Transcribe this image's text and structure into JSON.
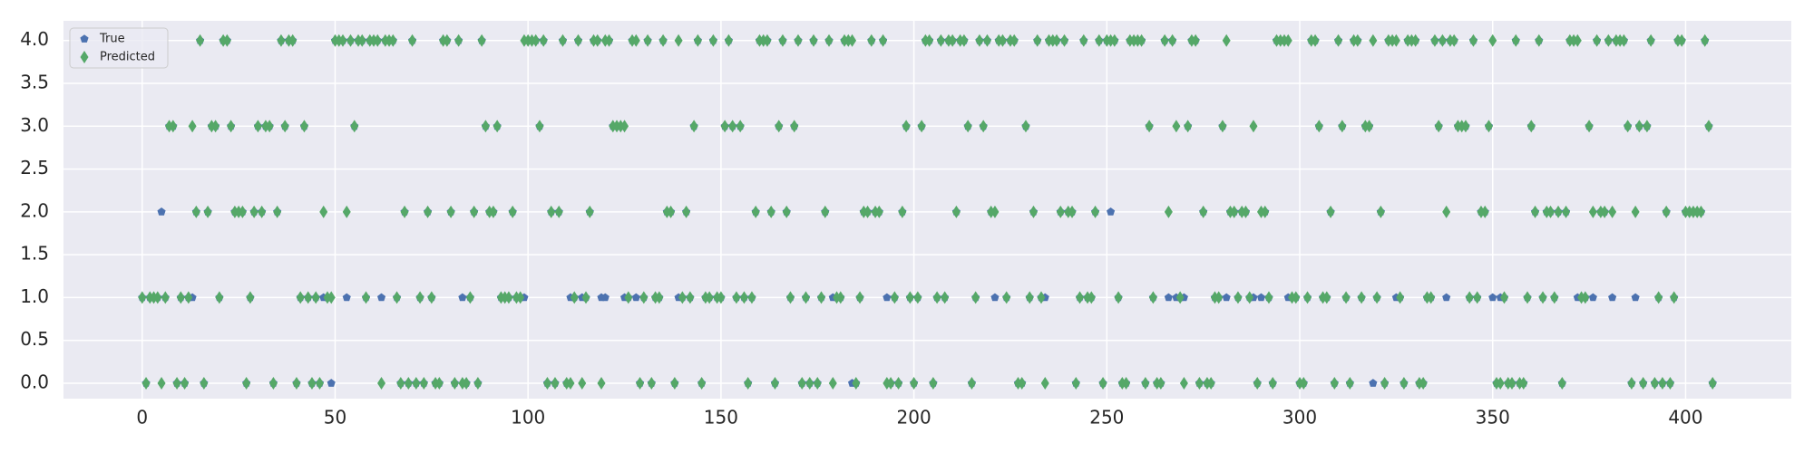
{
  "chart_data": {
    "type": "scatter",
    "x": [
      0,
      1,
      2,
      3,
      4,
      5,
      6,
      7,
      8,
      9,
      10,
      11,
      12,
      13,
      14,
      15,
      16,
      17,
      18,
      19,
      20,
      21,
      22,
      23,
      24,
      25,
      26,
      27,
      28,
      29,
      30,
      31,
      32,
      33,
      34,
      35,
      36,
      37,
      38,
      39,
      40,
      41,
      42,
      43,
      44,
      45,
      46,
      47,
      48,
      49,
      50,
      51,
      52,
      53,
      54,
      55,
      56,
      57,
      58,
      59,
      60,
      61,
      62,
      63,
      64,
      65,
      66,
      67,
      68,
      69,
      70,
      71,
      72,
      73,
      74,
      75,
      76,
      77,
      78,
      79,
      80,
      81,
      82,
      83,
      84,
      85,
      86,
      87,
      88,
      89,
      90,
      91,
      92,
      93,
      94,
      95,
      96,
      97,
      98,
      99,
      100,
      101,
      102,
      103,
      104,
      105,
      106,
      107,
      108,
      109,
      110,
      111,
      112,
      113,
      114,
      115,
      116,
      117,
      118,
      119,
      120,
      121,
      122,
      123,
      124,
      125,
      126,
      127,
      128,
      129,
      130,
      131,
      132,
      133,
      134,
      135,
      136,
      137,
      138,
      139,
      140,
      141,
      142,
      143,
      144,
      145,
      146,
      147,
      148,
      149,
      150,
      151,
      152,
      153,
      154,
      155,
      156,
      157,
      158,
      159,
      160,
      161,
      162,
      163,
      164,
      165,
      166,
      167,
      168,
      169,
      170,
      171,
      172,
      173,
      174,
      175,
      176,
      177,
      178,
      179,
      180,
      181,
      182,
      183,
      184,
      185,
      186,
      187,
      188,
      189,
      190,
      191,
      192,
      193,
      194,
      195,
      196,
      197,
      198,
      199,
      200,
      201,
      202,
      203,
      204,
      205,
      206,
      207,
      208,
      209,
      210,
      211,
      212,
      213,
      214,
      215,
      216,
      217,
      218,
      219,
      220,
      221,
      222,
      223,
      224,
      225,
      226,
      227,
      228,
      229,
      230,
      231,
      232,
      233,
      234,
      235,
      236,
      237,
      238,
      239,
      240,
      241,
      242,
      243,
      244,
      245,
      246,
      247,
      248,
      249,
      250,
      251,
      252,
      253,
      254,
      255,
      256,
      257,
      258,
      259,
      260,
      261,
      262,
      263,
      264,
      265,
      266,
      267,
      268,
      269,
      270,
      271,
      272,
      273,
      274,
      275,
      276,
      277,
      278,
      279,
      280,
      281,
      282,
      283,
      284,
      285,
      286,
      287,
      288,
      289,
      290,
      291,
      292,
      293,
      294,
      295,
      296,
      297,
      298,
      299,
      300,
      301,
      302,
      303,
      304,
      305,
      306,
      307,
      308,
      309,
      310,
      311,
      312,
      313,
      314,
      315,
      316,
      317,
      318,
      319,
      320,
      321,
      322,
      323,
      324,
      325,
      326,
      327,
      328,
      329,
      330,
      331,
      332,
      333,
      334,
      335,
      336,
      337,
      338,
      339,
      340,
      341,
      342,
      343,
      344,
      345,
      346,
      347,
      348,
      349,
      350,
      351,
      352,
      353,
      354,
      355,
      356,
      357,
      358,
      359,
      360,
      361,
      362,
      363,
      364,
      365,
      366,
      367,
      368,
      369,
      370,
      371,
      372,
      373,
      374,
      375,
      376,
      377,
      378,
      379,
      380,
      381,
      382,
      383,
      384,
      385,
      386,
      387,
      388,
      389,
      390,
      391,
      392,
      393,
      394,
      395,
      396,
      397,
      398,
      399,
      400,
      401,
      402,
      403,
      404,
      405,
      406,
      407
    ],
    "series": [
      {
        "name": "True",
        "color": "#4c72b0",
        "marker": "pentagon",
        "values": [
          1,
          0,
          1,
          1,
          1,
          2,
          1,
          3,
          3,
          0,
          1,
          0,
          1,
          1,
          2,
          4,
          0,
          2,
          3,
          3,
          1,
          4,
          4,
          3,
          2,
          2,
          2,
          0,
          1,
          2,
          3,
          2,
          3,
          3,
          0,
          2,
          4,
          3,
          4,
          4,
          0,
          1,
          3,
          1,
          0,
          1,
          0,
          1,
          1,
          0,
          4,
          4,
          4,
          1,
          4,
          3,
          4,
          4,
          1,
          4,
          4,
          4,
          1,
          4,
          4,
          4,
          1,
          0,
          2,
          0,
          4,
          0,
          1,
          0,
          2,
          1,
          0,
          0,
          4,
          4,
          2,
          0,
          4,
          1,
          0,
          1,
          2,
          0,
          4,
          3,
          2,
          2,
          3,
          1,
          1,
          1,
          2,
          1,
          1,
          1,
          4,
          4,
          4,
          3,
          4,
          0,
          2,
          0,
          2,
          4,
          0,
          1,
          1,
          4,
          1,
          1,
          2,
          4,
          4,
          1,
          1,
          4,
          3,
          3,
          3,
          1,
          1,
          4,
          1,
          0,
          1,
          4,
          0,
          1,
          1,
          4,
          2,
          2,
          0,
          1,
          1,
          2,
          1,
          3,
          4,
          0,
          1,
          1,
          4,
          1,
          1,
          3,
          4,
          3,
          1,
          3,
          1,
          0,
          1,
          2,
          4,
          4,
          4,
          2,
          0,
          3,
          4,
          2,
          1,
          3,
          4,
          0,
          1,
          0,
          4,
          0,
          1,
          2,
          4,
          1,
          1,
          1,
          4,
          4,
          0,
          0,
          1,
          2,
          2,
          4,
          2,
          2,
          4,
          1,
          0,
          1,
          0,
          2,
          3,
          1,
          0,
          1,
          3,
          4,
          4,
          0,
          1,
          4,
          1,
          4,
          4,
          2,
          4,
          4,
          3,
          0,
          1,
          4,
          3,
          4,
          2,
          1,
          4,
          4,
          1,
          4,
          4,
          0,
          0,
          3,
          1,
          2,
          4,
          1,
          1,
          4,
          4,
          4,
          2,
          4,
          2,
          2,
          0,
          1,
          4,
          1,
          1,
          2,
          4,
          0,
          4,
          2,
          4,
          1,
          0,
          0,
          4,
          4,
          4,
          4,
          0,
          3,
          1,
          0,
          0,
          4,
          1,
          4,
          1,
          1,
          1,
          3,
          4,
          4,
          0,
          2,
          0,
          0,
          1,
          1,
          3,
          1,
          2,
          2,
          1,
          2,
          2,
          1,
          1,
          0,
          1,
          2,
          1,
          0,
          4,
          4,
          4,
          1,
          1,
          1,
          0,
          0,
          1,
          4,
          4,
          3,
          1,
          1,
          2,
          0,
          4,
          3,
          1,
          0,
          4,
          4,
          1,
          3,
          3,
          0,
          1,
          2,
          0,
          4,
          4,
          1,
          1,
          0,
          4,
          4,
          4,
          0,
          0,
          1,
          1,
          4,
          3,
          4,
          1,
          4,
          4,
          3,
          3,
          3,
          1,
          4,
          1,
          2,
          2,
          3,
          1,
          0,
          1,
          1,
          0,
          0,
          4,
          0,
          0,
          1,
          3,
          2,
          4,
          1,
          2,
          2,
          1,
          2,
          0,
          2,
          4,
          4,
          1,
          1,
          1,
          3,
          1,
          4,
          2,
          2,
          4,
          1,
          4,
          4,
          4,
          3,
          0,
          1,
          3,
          0,
          3,
          4,
          0,
          1,
          0,
          2,
          0,
          1,
          4,
          4,
          2,
          2,
          2,
          2,
          2,
          4,
          3,
          0
        ]
      },
      {
        "name": "Predicted",
        "color": "#55a868",
        "marker": "diamond",
        "values": [
          1,
          0,
          1,
          1,
          1,
          0,
          1,
          3,
          3,
          0,
          1,
          0,
          1,
          3,
          2,
          4,
          0,
          2,
          3,
          3,
          1,
          4,
          4,
          3,
          2,
          2,
          2,
          0,
          1,
          2,
          3,
          2,
          3,
          3,
          0,
          2,
          4,
          3,
          4,
          4,
          0,
          1,
          3,
          1,
          0,
          1,
          0,
          2,
          1,
          1,
          4,
          4,
          4,
          2,
          4,
          3,
          4,
          4,
          1,
          4,
          4,
          4,
          0,
          4,
          4,
          4,
          1,
          0,
          2,
          0,
          4,
          0,
          1,
          0,
          2,
          1,
          0,
          0,
          4,
          4,
          2,
          0,
          4,
          0,
          0,
          1,
          2,
          0,
          4,
          3,
          2,
          2,
          3,
          1,
          1,
          1,
          2,
          1,
          1,
          4,
          4,
          4,
          4,
          3,
          4,
          0,
          2,
          0,
          2,
          4,
          0,
          0,
          1,
          4,
          0,
          1,
          2,
          4,
          4,
          0,
          4,
          4,
          3,
          3,
          3,
          3,
          1,
          4,
          4,
          0,
          1,
          4,
          0,
          1,
          1,
          4,
          2,
          2,
          0,
          4,
          1,
          2,
          1,
          3,
          4,
          0,
          1,
          1,
          4,
          1,
          1,
          3,
          4,
          3,
          1,
          3,
          1,
          0,
          1,
          2,
          4,
          4,
          4,
          2,
          0,
          3,
          4,
          2,
          1,
          3,
          4,
          0,
          1,
          0,
          4,
          0,
          1,
          2,
          4,
          0,
          1,
          1,
          4,
          4,
          4,
          0,
          1,
          2,
          2,
          4,
          2,
          2,
          4,
          0,
          0,
          1,
          0,
          2,
          3,
          1,
          0,
          1,
          3,
          4,
          4,
          0,
          1,
          4,
          1,
          4,
          4,
          2,
          4,
          4,
          3,
          0,
          1,
          4,
          3,
          4,
          2,
          2,
          4,
          4,
          1,
          4,
          4,
          0,
          0,
          3,
          1,
          2,
          4,
          1,
          0,
          4,
          4,
          4,
          2,
          4,
          2,
          2,
          0,
          1,
          4,
          1,
          1,
          2,
          4,
          0,
          4,
          4,
          4,
          1,
          0,
          0,
          4,
          4,
          4,
          4,
          0,
          3,
          1,
          0,
          0,
          4,
          2,
          4,
          3,
          1,
          0,
          3,
          4,
          4,
          0,
          2,
          0,
          0,
          1,
          1,
          3,
          4,
          2,
          2,
          1,
          2,
          2,
          1,
          3,
          0,
          2,
          2,
          1,
          0,
          4,
          4,
          4,
          4,
          1,
          1,
          0,
          0,
          1,
          4,
          4,
          3,
          1,
          1,
          2,
          0,
          4,
          3,
          1,
          0,
          4,
          4,
          1,
          3,
          3,
          4,
          1,
          2,
          0,
          4,
          4,
          4,
          1,
          0,
          4,
          4,
          4,
          0,
          0,
          1,
          1,
          4,
          3,
          4,
          2,
          4,
          4,
          3,
          3,
          3,
          1,
          4,
          1,
          2,
          2,
          3,
          4,
          0,
          0,
          1,
          0,
          0,
          4,
          0,
          0,
          1,
          3,
          2,
          4,
          1,
          2,
          2,
          1,
          2,
          0,
          2,
          4,
          4,
          4,
          1,
          1,
          3,
          2,
          4,
          2,
          2,
          4,
          2,
          4,
          4,
          4,
          3,
          0,
          2,
          3,
          0,
          3,
          4,
          0,
          1,
          0,
          2,
          0,
          1,
          4,
          4,
          2,
          2,
          2,
          2,
          2,
          4,
          3,
          0
        ]
      }
    ],
    "xlim": [
      -20.4,
      427.4
    ],
    "xticks": [
      0,
      50,
      100,
      150,
      200,
      250,
      300,
      350,
      400
    ],
    "ylim": [
      -0.18,
      4.23
    ],
    "yticks": [
      {
        "value": 0,
        "label": "0.0"
      },
      {
        "value": 0.5,
        "label": "0.5"
      },
      {
        "value": 1,
        "label": "1.0"
      },
      {
        "value": 1.5,
        "label": "1.5"
      },
      {
        "value": 2,
        "label": "2.0"
      },
      {
        "value": 2.5,
        "label": "2.5"
      },
      {
        "value": 3,
        "label": "3.0"
      },
      {
        "value": 3.5,
        "label": "3.5"
      },
      {
        "value": 4,
        "label": "4.0"
      }
    ],
    "grid": true,
    "legend": "upper-left"
  }
}
